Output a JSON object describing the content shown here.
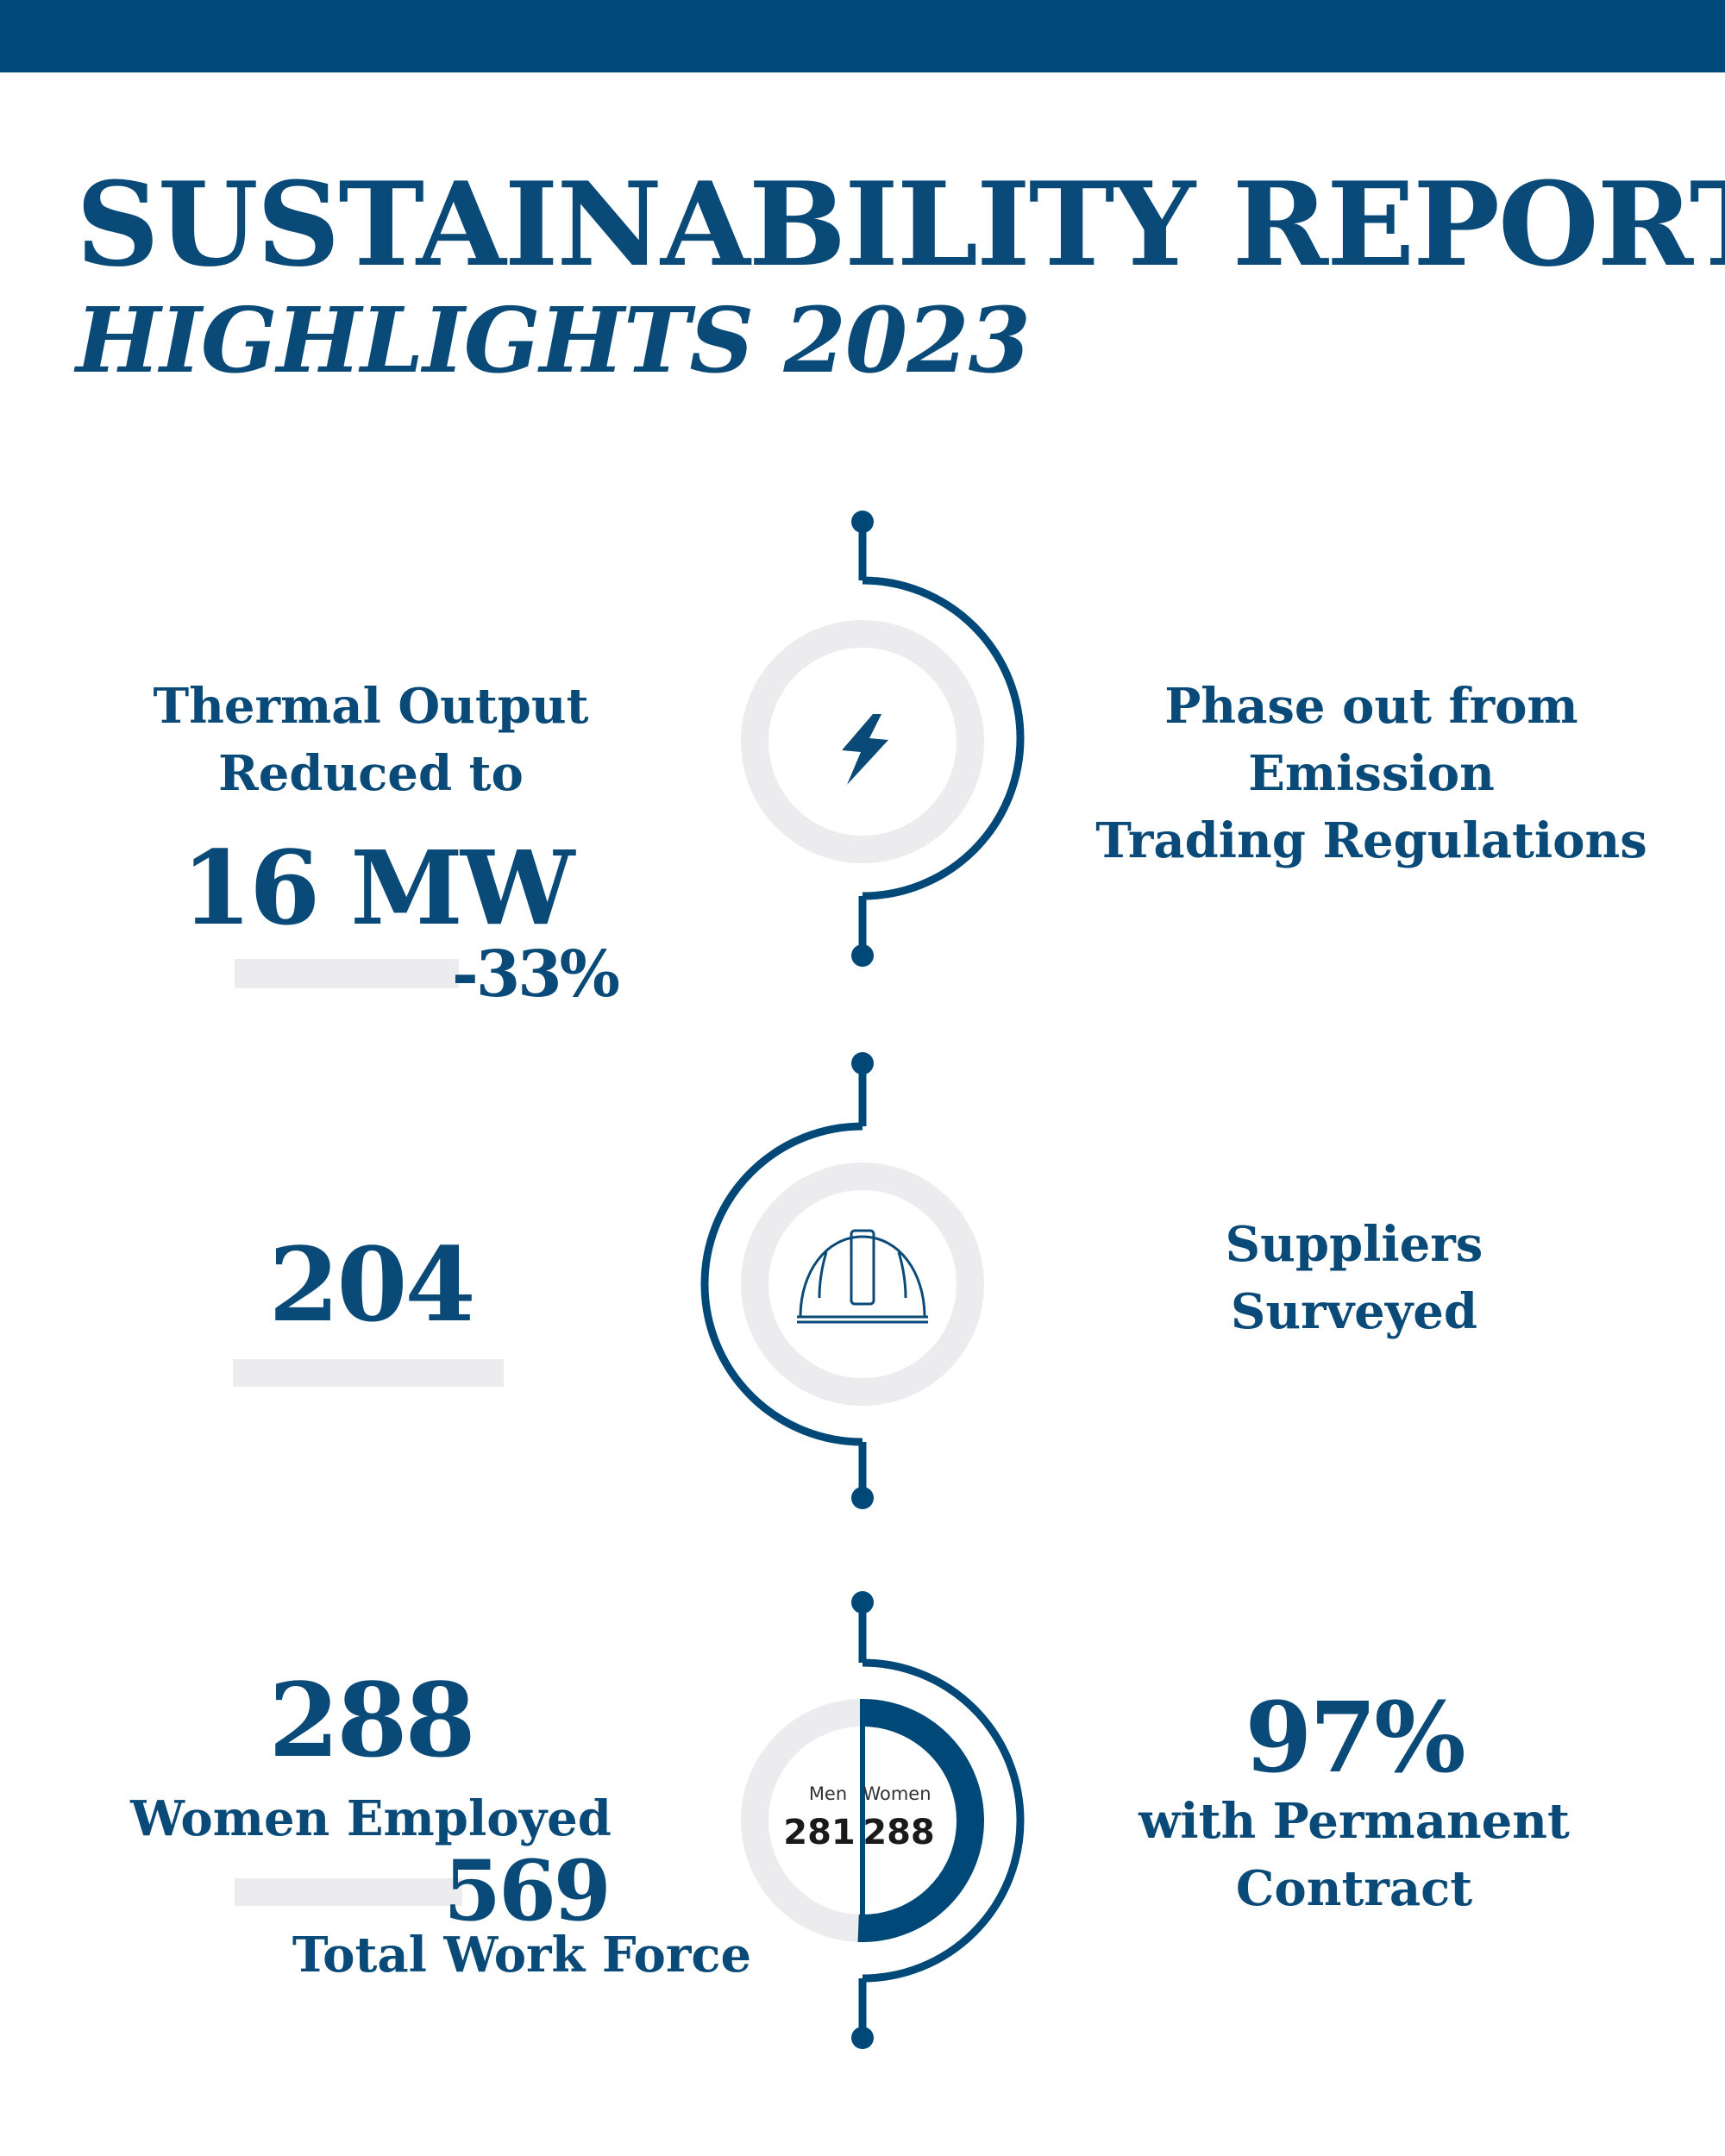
{
  "header": {
    "title": "SUSTAINABILITY REPORT",
    "subtitle": "HIGHLIGHTS 2023"
  },
  "section1": {
    "left_label_line1": "Thermal Output",
    "left_label_line2": "Reduced to",
    "value": "16 MW",
    "change": "-33%",
    "icon": "lightning-bolt-icon",
    "right_label_line1": "Phase out from Emission",
    "right_label_line2": "Trading Regulations"
  },
  "section2": {
    "value": "204",
    "icon": "hard-hat-icon",
    "right_label_line1": "Suppliers",
    "right_label_line2": "Surveyed"
  },
  "section3": {
    "women_value": "288",
    "women_label": "Women Employed",
    "total_value": "569",
    "total_label": "Total Work Force",
    "right_value": "97%",
    "right_label_line1": "with Permanent",
    "right_label_line2": "Contract"
  },
  "chart_data": {
    "type": "pie",
    "categories": [
      "Men",
      "Women"
    ],
    "values": [
      281,
      288
    ],
    "value_labels": [
      "281",
      "288"
    ]
  },
  "colors": {
    "primary": "#0a4a78",
    "bar": "#004878",
    "ring": "#ececee"
  }
}
